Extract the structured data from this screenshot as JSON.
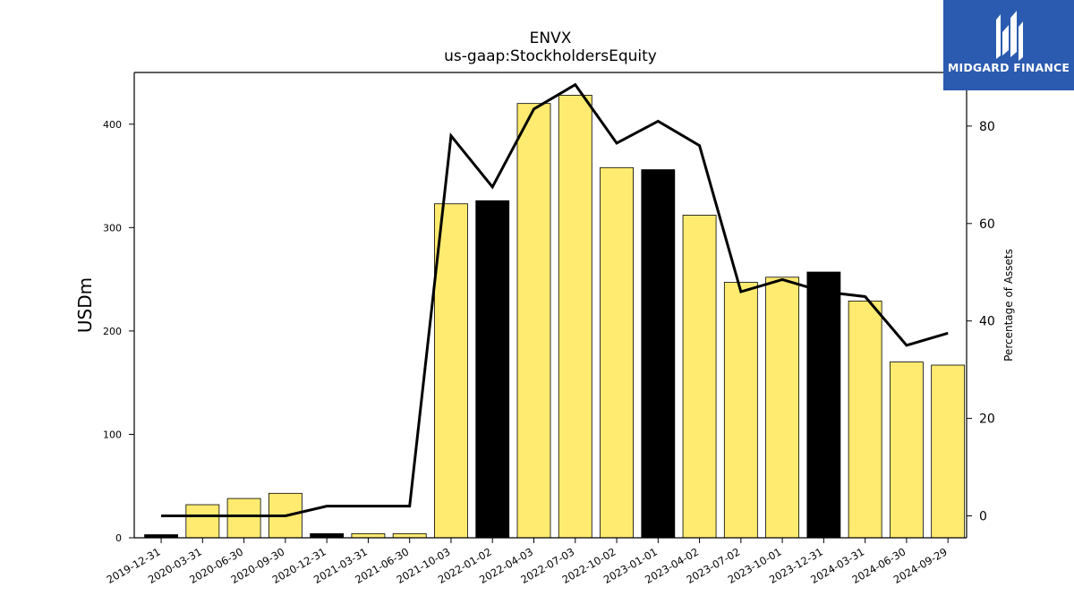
{
  "chart_data": {
    "type": "bar",
    "title": "ENVX",
    "subtitle": "us-gaap:StockholdersEquity",
    "ylabel": "USDm",
    "y2label": "Percentage of Assets",
    "ylim": [
      0,
      450
    ],
    "y2lim": [
      -4.5,
      91
    ],
    "yticks": [
      0,
      100,
      200,
      300,
      400
    ],
    "y2ticks": [
      0,
      20,
      40,
      60,
      80
    ],
    "categories": [
      "2019-12-31",
      "2020-03-31",
      "2020-06-30",
      "2020-09-30",
      "2020-12-31",
      "2021-03-31",
      "2021-06-30",
      "2021-10-03",
      "2022-01-02",
      "2022-04-03",
      "2022-07-03",
      "2022-10-02",
      "2023-01-01",
      "2023-04-02",
      "2023-07-02",
      "2023-10-01",
      "2023-12-31",
      "2024-03-31",
      "2024-06-30",
      "2024-09-29"
    ],
    "series": [
      {
        "type": "bar",
        "values": [
          3,
          32,
          38,
          43,
          4,
          4,
          4,
          323,
          326,
          420,
          428,
          358,
          356,
          312,
          247,
          252,
          257,
          229,
          170,
          167
        ]
      },
      {
        "type": "line",
        "axis": "right",
        "values": [
          0,
          0,
          0,
          0,
          2,
          2,
          2,
          78,
          67.5,
          83.5,
          88.5,
          76.5,
          81,
          76,
          46,
          48.5,
          46,
          45,
          35,
          37.5
        ]
      }
    ],
    "highlight_categories": [
      "2019-12-31",
      "2020-12-31",
      "2022-01-02",
      "2023-01-01",
      "2023-12-31"
    ],
    "colors": {
      "bar": "#ffeb70",
      "highlight_bar": "#000000",
      "line": "#000000",
      "logo_bg": "#2b5bb0"
    },
    "grid": false,
    "legend": "none"
  },
  "logo": {
    "text": "MIDGARD FINANCE",
    "icon": "midgard-finance-logo-icon"
  }
}
